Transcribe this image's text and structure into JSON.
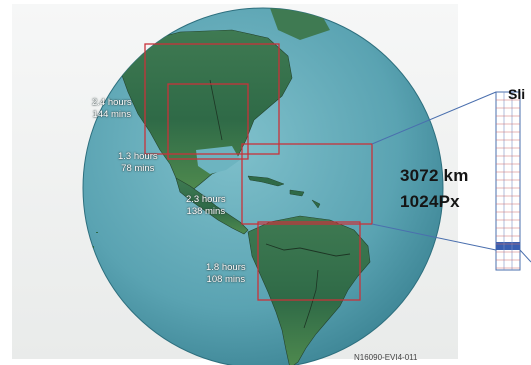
{
  "regions": [
    {
      "hours": "2.4 hours",
      "mins": "144 mins"
    },
    {
      "hours": "1.3 hours",
      "mins": "78 mins"
    },
    {
      "hours": "2.3 hours",
      "mins": "138 mins"
    },
    {
      "hours": "1.8 hours",
      "mins": "108 mins"
    }
  ],
  "extent": {
    "distance": "3072 km",
    "pixels": "1024Px"
  },
  "slices_title": "Sli",
  "figure_id": "N16090-EVI4-011",
  "colors": {
    "ocean": "#5fa6b4",
    "box": "#c8323a",
    "connector": "#4a6fae",
    "slice_highlight": "#3a5fb0"
  }
}
